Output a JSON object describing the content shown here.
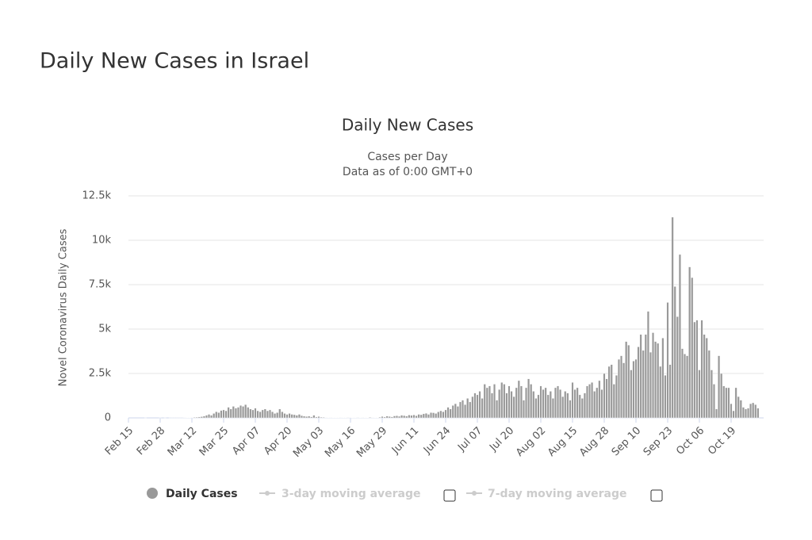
{
  "page_title": "Daily New Cases in Israel",
  "chart_data": {
    "type": "bar",
    "title": "Daily New Cases",
    "subtitle": [
      "Cases per Day",
      "Data as of 0:00 GMT+0"
    ],
    "y_label": "Novel Coronavirus Daily Cases",
    "categories": [
      "Feb 15",
      null,
      null,
      null,
      null,
      null,
      null,
      null,
      null,
      null,
      null,
      null,
      null,
      "Feb 28",
      null,
      null,
      null,
      null,
      null,
      null,
      null,
      null,
      null,
      null,
      null,
      null,
      "Mar 12",
      null,
      null,
      null,
      null,
      null,
      null,
      null,
      null,
      null,
      null,
      null,
      null,
      "Mar 25",
      null,
      null,
      null,
      null,
      null,
      null,
      null,
      null,
      null,
      null,
      null,
      null,
      "Apr 07",
      null,
      null,
      null,
      null,
      null,
      null,
      null,
      null,
      null,
      null,
      null,
      null,
      "Apr 20",
      null,
      null,
      null,
      null,
      null,
      null,
      null,
      null,
      null,
      null,
      null,
      null,
      "May 03",
      null,
      null,
      null,
      null,
      null,
      null,
      null,
      null,
      null,
      null,
      null,
      null,
      "May 16",
      null,
      null,
      null,
      null,
      null,
      null,
      null,
      null,
      null,
      null,
      null,
      null,
      "May 29",
      null,
      null,
      null,
      null,
      null,
      null,
      null,
      null,
      null,
      null,
      null,
      null,
      "Jun 11",
      null,
      null,
      null,
      null,
      null,
      null,
      null,
      null,
      null,
      null,
      null,
      null,
      "Jun 24",
      null,
      null,
      null,
      null,
      null,
      null,
      null,
      null,
      null,
      null,
      null,
      null,
      "Jul 07",
      null,
      null,
      null,
      null,
      null,
      null,
      null,
      null,
      null,
      null,
      null,
      null,
      "Jul 20",
      null,
      null,
      null,
      null,
      null,
      null,
      null,
      null,
      null,
      null,
      null,
      null,
      "Aug 02",
      null,
      null,
      null,
      null,
      null,
      null,
      null,
      null,
      null,
      null,
      null,
      null,
      "Aug 15",
      null,
      null,
      null,
      null,
      null,
      null,
      null,
      null,
      null,
      null,
      null,
      null,
      "Aug 28",
      null,
      null,
      null,
      null,
      null,
      null,
      null,
      null,
      null,
      null,
      null,
      null,
      "Sep 10",
      null,
      null,
      null,
      null,
      null,
      null,
      null,
      null,
      null,
      null,
      null,
      null,
      "Sep 23",
      null,
      null,
      null,
      null,
      null,
      null,
      null,
      null,
      null,
      null,
      null,
      null,
      "Oct 06",
      null,
      null,
      null,
      null,
      null,
      null,
      null,
      null,
      null,
      null,
      null,
      null,
      "Oct 19",
      null,
      null,
      null,
      null,
      null,
      null,
      null,
      null,
      null,
      null,
      null
    ],
    "series": [
      {
        "name": "Daily Cases",
        "color": "#999999",
        "values": [
          0,
          0,
          0,
          0,
          0,
          0,
          0,
          1,
          0,
          0,
          0,
          0,
          0,
          1,
          0,
          2,
          0,
          1,
          3,
          4,
          2,
          4,
          3,
          20,
          14,
          16,
          20,
          30,
          40,
          50,
          70,
          100,
          150,
          200,
          150,
          250,
          350,
          300,
          420,
          450,
          400,
          600,
          500,
          650,
          550,
          600,
          700,
          650,
          750,
          600,
          500,
          450,
          550,
          400,
          350,
          450,
          500,
          400,
          450,
          350,
          250,
          300,
          500,
          350,
          250,
          200,
          250,
          200,
          180,
          150,
          200,
          130,
          100,
          80,
          100,
          60,
          150,
          50,
          80,
          40,
          30,
          20,
          15,
          20,
          10,
          15,
          10,
          20,
          15,
          10,
          8,
          20,
          10,
          15,
          8,
          10,
          20,
          15,
          10,
          30,
          20,
          10,
          15,
          40,
          80,
          50,
          100,
          80,
          60,
          110,
          120,
          90,
          150,
          130,
          100,
          160,
          140,
          170,
          120,
          200,
          180,
          230,
          260,
          200,
          300,
          290,
          250,
          340,
          400,
          350,
          450,
          600,
          500,
          700,
          800,
          650,
          900,
          1000,
          750,
          1100,
          900,
          1200,
          1400,
          1300,
          1500,
          1100,
          1900,
          1700,
          1800,
          1400,
          1900,
          1000,
          1600,
          2000,
          1900,
          1400,
          1800,
          1500,
          1200,
          1700,
          2100,
          1800,
          1000,
          1700,
          2200,
          1900,
          1500,
          1100,
          1300,
          1800,
          1600,
          1700,
          1300,
          1500,
          1100,
          1700,
          1800,
          1600,
          1200,
          1500,
          1400,
          1000,
          2000,
          1600,
          1700,
          1300,
          1100,
          1400,
          1800,
          1900,
          2000,
          1500,
          1700,
          2100,
          1600,
          2500,
          2200,
          2900,
          3000,
          1900,
          2400,
          3300,
          3500,
          3100,
          4300,
          4100,
          2700,
          3200,
          3300,
          4000,
          4700,
          3800,
          4700,
          6000,
          3700,
          4800,
          4300,
          4200,
          2900,
          4500,
          2400,
          6500,
          3000,
          11300,
          7400,
          5700,
          9200,
          3900,
          3600,
          3500,
          8500,
          7900,
          5400,
          5500,
          2700,
          5500,
          4700,
          4500,
          3800,
          2700,
          1900,
          500,
          3500,
          2500,
          1800,
          1700,
          1700,
          800,
          400,
          1700,
          1200,
          1000,
          600,
          500,
          550,
          800,
          850,
          750,
          550
        ]
      }
    ],
    "legend_inactive": [
      "3-day moving average",
      "7-day moving average"
    ],
    "ylim": [
      0,
      12500
    ],
    "yticks": [
      0,
      {
        "value": 2500,
        "label": "2.5k"
      },
      {
        "value": 5000,
        "label": "5k"
      },
      {
        "value": 7500,
        "label": "7.5k"
      },
      {
        "value": 10000,
        "label": "10k"
      },
      {
        "value": 12500,
        "label": "12.5k"
      }
    ],
    "grid": true
  }
}
